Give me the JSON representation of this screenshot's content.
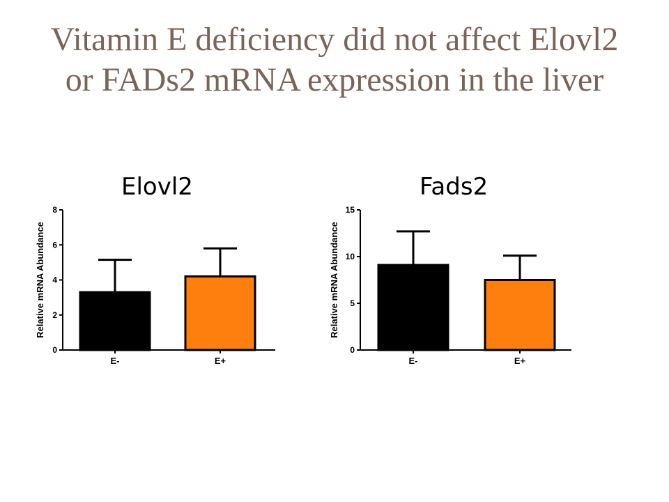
{
  "slide": {
    "title_line1": "Vitamin E deficiency did not affect Elovl2",
    "title_line2": "or FADs2 mRNA expression in the liver"
  },
  "colors": {
    "title": "#7a6358",
    "E_minus": "#000000",
    "E_plus": "#ff7f0e"
  },
  "chart_data": [
    {
      "type": "bar",
      "title": "Elovl2",
      "ylabel": "Relative mRNA Abundance",
      "xlabel": "",
      "categories": [
        "E-",
        "E+"
      ],
      "values": [
        3.3,
        4.2
      ],
      "error_bars": [
        1.85,
        1.6
      ],
      "colors": [
        "#000000",
        "#ff7f0e"
      ],
      "ylim": [
        0,
        8
      ],
      "yticks": [
        0,
        2,
        4,
        6,
        8
      ],
      "grid": false
    },
    {
      "type": "bar",
      "title": "Fads2",
      "ylabel": "Relative mRNA Abundance",
      "xlabel": "",
      "categories": [
        "E-",
        "E+"
      ],
      "values": [
        9.1,
        7.5
      ],
      "error_bars": [
        3.6,
        2.6
      ],
      "colors": [
        "#000000",
        "#ff7f0e"
      ],
      "ylim": [
        0,
        15
      ],
      "yticks": [
        0,
        5,
        10,
        15
      ],
      "grid": false
    }
  ]
}
